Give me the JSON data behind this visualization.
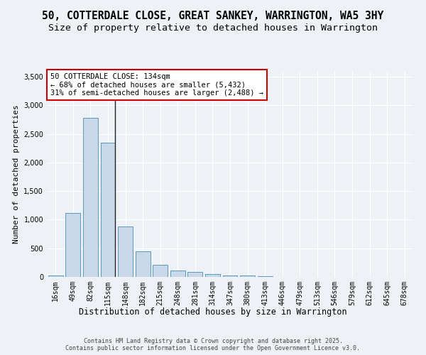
{
  "title": "50, COTTERDALE CLOSE, GREAT SANKEY, WARRINGTON, WA5 3HY",
  "subtitle": "Size of property relative to detached houses in Warrington",
  "xlabel": "Distribution of detached houses by size in Warrington",
  "ylabel": "Number of detached properties",
  "categories": [
    "16sqm",
    "49sqm",
    "82sqm",
    "115sqm",
    "148sqm",
    "182sqm",
    "215sqm",
    "248sqm",
    "281sqm",
    "314sqm",
    "347sqm",
    "380sqm",
    "413sqm",
    "446sqm",
    "479sqm",
    "513sqm",
    "546sqm",
    "579sqm",
    "612sqm",
    "645sqm",
    "678sqm"
  ],
  "values": [
    30,
    1120,
    2780,
    2350,
    880,
    445,
    215,
    110,
    90,
    55,
    30,
    20,
    15,
    5,
    3,
    2,
    1,
    1,
    0,
    0,
    0
  ],
  "bar_color": "#c8d8e8",
  "bar_edge_color": "#5a9abf",
  "annotation_text": "50 COTTERDALE CLOSE: 134sqm\n← 68% of detached houses are smaller (5,432)\n31% of semi-detached houses are larger (2,488) →",
  "annotation_box_color": "#ffffff",
  "annotation_box_edge": "#cc0000",
  "bg_color": "#eef2f7",
  "grid_color": "#ffffff",
  "footer_line1": "Contains HM Land Registry data © Crown copyright and database right 2025.",
  "footer_line2": "Contains public sector information licensed under the Open Government Licence v3.0.",
  "ylim": [
    0,
    3600
  ],
  "yticks": [
    0,
    500,
    1000,
    1500,
    2000,
    2500,
    3000,
    3500
  ],
  "title_fontsize": 10.5,
  "subtitle_fontsize": 9.5,
  "ylabel_fontsize": 8,
  "xlabel_fontsize": 8.5,
  "tick_fontsize": 7,
  "footer_fontsize": 6,
  "annot_fontsize": 7.5,
  "property_line_index": 3.42
}
